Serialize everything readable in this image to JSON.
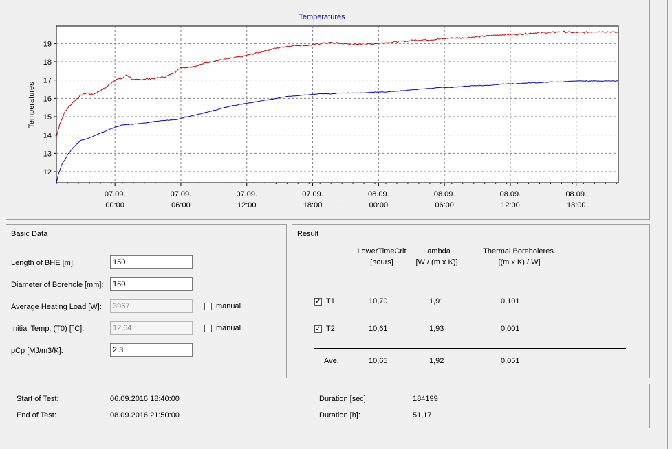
{
  "chart": {
    "title": "Temperatures",
    "ylabel": "Temperatures",
    "x_ticks": [
      {
        "date": "07.09.",
        "time": "00:00"
      },
      {
        "date": "07.09.",
        "time": "06:00"
      },
      {
        "date": "07.09.",
        "time": "12:00"
      },
      {
        "date": "07.09.",
        "time": "18:00"
      },
      {
        "date": "08.09.",
        "time": "00:00"
      },
      {
        "date": "08.09.",
        "time": "06:00"
      },
      {
        "date": "08.09.",
        "time": "12:00"
      },
      {
        "date": "08.09.",
        "time": "18:00"
      }
    ],
    "stray_mark": ".",
    "colors": {
      "red": "#cc0000",
      "blue": "#0000cc",
      "title": "#0000c0"
    }
  },
  "chart_data": {
    "type": "line",
    "title": "Temperatures",
    "xlabel": "",
    "ylabel": "Temperatures",
    "x_unit": "hours since 06.09.2016 18:40",
    "xlim": [
      0,
      51.17
    ],
    "ylim": [
      11.4,
      19.95
    ],
    "y_ticks": [
      12,
      13,
      14,
      15,
      16,
      17,
      18,
      19
    ],
    "grid": true,
    "series": [
      {
        "color": "#cc0000",
        "x": [
          0,
          0.3,
          0.8,
          1.5,
          2.3,
          2.8,
          3.3,
          4.5,
          5.3,
          6,
          6.4,
          7,
          8,
          9,
          10,
          11,
          11.3,
          12,
          12.8,
          14,
          15,
          16,
          17,
          18,
          19,
          20,
          21,
          22,
          23,
          24,
          25,
          26,
          27,
          28,
          29,
          30,
          31,
          32,
          33,
          34,
          35,
          36,
          37,
          38,
          39,
          40,
          41,
          42,
          43,
          44,
          45,
          46,
          47,
          48,
          49,
          50,
          51.17
        ],
        "y": [
          13.9,
          14.6,
          15.3,
          15.8,
          16.2,
          16.3,
          16.2,
          16.6,
          17.0,
          17.1,
          17.3,
          17.0,
          17.05,
          17.1,
          17.2,
          17.5,
          17.7,
          17.7,
          17.8,
          18.0,
          18.1,
          18.2,
          18.3,
          18.45,
          18.6,
          18.75,
          18.85,
          18.9,
          18.9,
          19.0,
          19.05,
          19.0,
          18.95,
          18.95,
          19.0,
          19.05,
          19.1,
          19.15,
          19.2,
          19.2,
          19.25,
          19.3,
          19.3,
          19.35,
          19.4,
          19.45,
          19.5,
          19.5,
          19.55,
          19.6,
          19.6,
          19.65,
          19.6,
          19.6,
          19.65,
          19.65,
          19.6
        ]
      },
      {
        "color": "#0000cc",
        "x": [
          0,
          0.2,
          0.5,
          1,
          1.5,
          2.2,
          3,
          4,
          5,
          6,
          7,
          8,
          9,
          10,
          11,
          12,
          13,
          14,
          15,
          16,
          17,
          18,
          19,
          20,
          21,
          22,
          23,
          24,
          25,
          26,
          27,
          28,
          29,
          30,
          31,
          32,
          33,
          34,
          35,
          36,
          37,
          38,
          39,
          40,
          41,
          42,
          43,
          44,
          45,
          46,
          47,
          48,
          49,
          50,
          51.17
        ],
        "y": [
          11.4,
          11.9,
          12.4,
          12.9,
          13.3,
          13.7,
          13.85,
          14.1,
          14.35,
          14.55,
          14.6,
          14.65,
          14.75,
          14.8,
          14.85,
          15.0,
          15.15,
          15.3,
          15.45,
          15.6,
          15.7,
          15.8,
          15.9,
          16.0,
          16.1,
          16.15,
          16.2,
          16.25,
          16.25,
          16.3,
          16.3,
          16.3,
          16.35,
          16.35,
          16.4,
          16.45,
          16.5,
          16.55,
          16.6,
          16.6,
          16.65,
          16.7,
          16.7,
          16.75,
          16.8,
          16.8,
          16.85,
          16.85,
          16.9,
          16.9,
          16.95,
          16.95,
          16.95,
          16.95,
          16.95
        ]
      }
    ]
  },
  "basic_data": {
    "title": "Basic Data",
    "length_label": "Length of BHE [m]:",
    "length_value": "150",
    "diameter_label": "Diameter of Borehole [mm]:",
    "diameter_value": "160",
    "heating_label": "Average Heating Load [W]:",
    "heating_value": "3967",
    "heating_manual_label": "manual",
    "initial_label": "Initial Temp. (T0) [°C]:",
    "initial_value": "12,64",
    "initial_manual_label": "manual",
    "pcp_label": "pCp [MJ/m3/K]:",
    "pcp_value": "2.3"
  },
  "result": {
    "title": "Result",
    "col1_line1": "LowerTimeCrit",
    "col1_line2": "[hours]",
    "col2_line1": "Lambda",
    "col2_line2": "[W / (m x K)]",
    "col3_line1": "Thermal Boreholeres.",
    "col3_line2": "[(m x K) / W]",
    "t1": {
      "label": "T1",
      "lower": "10,70",
      "lambda": "1,91",
      "thermal": "0,101",
      "check": "✓"
    },
    "t2": {
      "label": "T2",
      "lower": "10,61",
      "lambda": "1,93",
      "thermal": "0,001",
      "check": "✓"
    },
    "ave": {
      "label": "Ave.",
      "lower": "10,65",
      "lambda": "1,92",
      "thermal": "0,051"
    }
  },
  "summary": {
    "start_label": "Start of Test:",
    "start_value": "06.09.2016 18:40:00",
    "end_label": "End of Test:",
    "end_value": "08.09.2016 21:50:00",
    "dur_sec_label": "Duration [sec]:",
    "dur_sec_value": "184199",
    "dur_h_label": "Duration [h]:",
    "dur_h_value": "51,17"
  }
}
